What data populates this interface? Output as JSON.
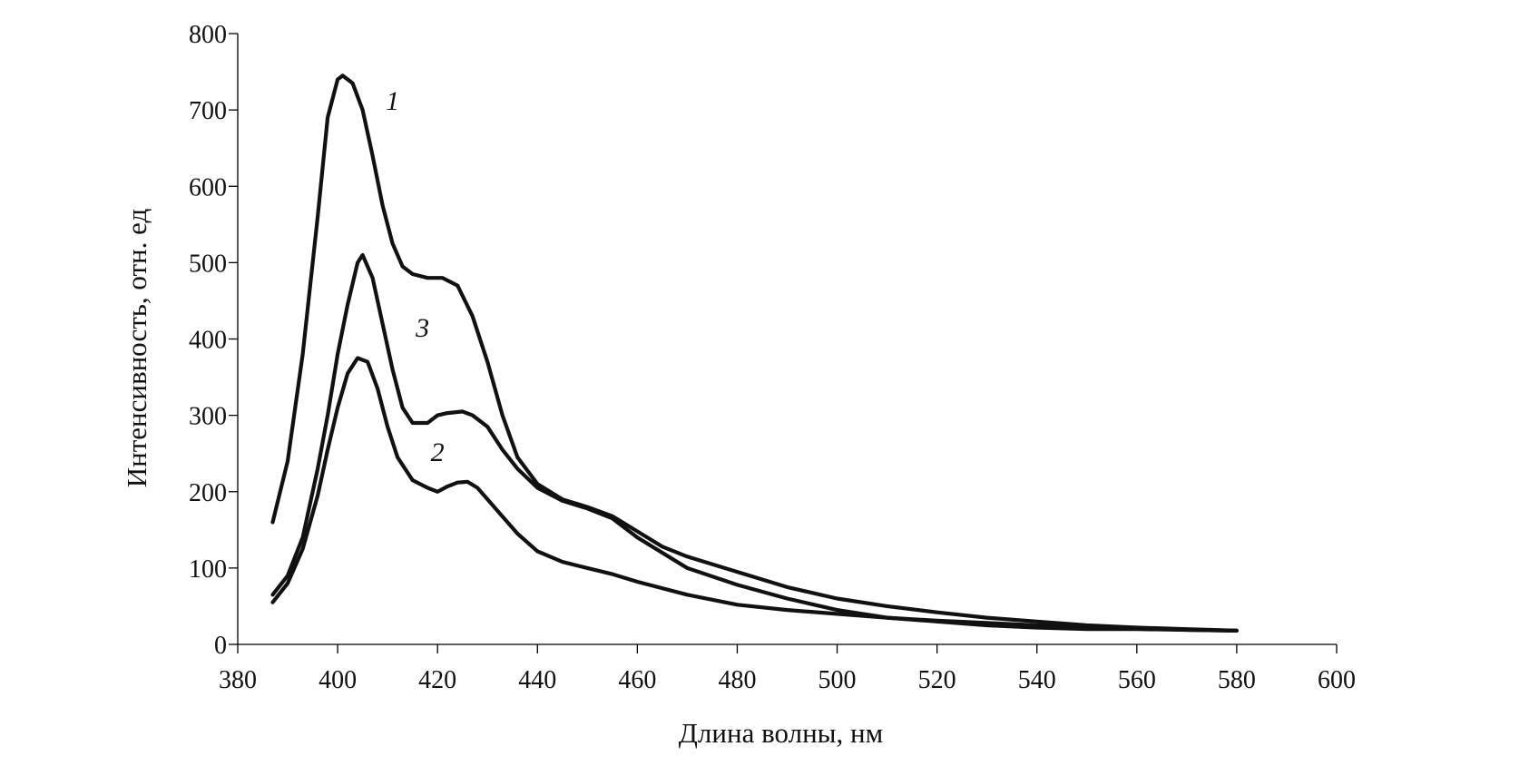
{
  "chart_data": {
    "type": "line",
    "xlabel": "Длина волны, нм",
    "ylabel": "Интенсивность, отн. ед",
    "xlim": [
      380,
      600
    ],
    "ylim": [
      0,
      800
    ],
    "xticks": [
      "380",
      "400",
      "420",
      "440",
      "460",
      "480",
      "500",
      "520",
      "540",
      "560",
      "580",
      "600"
    ],
    "yticks": [
      "0",
      "100",
      "200",
      "300",
      "400",
      "500",
      "600",
      "700",
      "800"
    ],
    "grid": false,
    "line_color": "#111111",
    "series": [
      {
        "name": "1",
        "x": [
          387,
          390,
          393,
          396,
          398,
          400,
          401,
          403,
          405,
          407,
          409,
          411,
          413,
          415,
          418,
          421,
          424,
          427,
          430,
          433,
          436,
          440,
          445,
          450,
          455,
          460,
          465,
          470,
          480,
          490,
          500,
          510,
          520,
          530,
          540,
          550,
          560,
          570,
          580
        ],
        "values": [
          160,
          240,
          380,
          560,
          690,
          740,
          745,
          735,
          700,
          640,
          575,
          525,
          495,
          485,
          480,
          480,
          470,
          430,
          370,
          300,
          245,
          210,
          190,
          180,
          168,
          148,
          128,
          115,
          95,
          75,
          60,
          50,
          42,
          35,
          30,
          25,
          22,
          20,
          18
        ]
      },
      {
        "name": "2",
        "x": [
          387,
          390,
          393,
          396,
          398,
          400,
          402,
          404,
          406,
          408,
          410,
          412,
          415,
          418,
          420,
          422,
          424,
          426,
          428,
          432,
          436,
          440,
          445,
          450,
          455,
          460,
          470,
          480,
          490,
          500,
          510,
          520,
          530,
          540,
          550,
          560,
          570,
          580
        ],
        "values": [
          55,
          80,
          125,
          195,
          255,
          310,
          355,
          375,
          370,
          335,
          285,
          245,
          215,
          205,
          200,
          207,
          212,
          213,
          205,
          175,
          145,
          122,
          108,
          100,
          92,
          82,
          65,
          52,
          45,
          40,
          35,
          31,
          28,
          25,
          23,
          21,
          19,
          18
        ]
      },
      {
        "name": "3",
        "x": [
          387,
          390,
          393,
          396,
          398,
          400,
          402,
          404,
          405,
          407,
          409,
          411,
          413,
          415,
          418,
          420,
          422,
          425,
          427,
          430,
          433,
          436,
          440,
          445,
          450,
          455,
          460,
          470,
          480,
          490,
          500,
          510,
          520,
          530,
          540,
          550,
          560,
          570,
          580
        ],
        "values": [
          65,
          90,
          140,
          230,
          300,
          380,
          445,
          500,
          510,
          480,
          420,
          360,
          310,
          290,
          290,
          300,
          303,
          305,
          300,
          285,
          255,
          230,
          205,
          188,
          178,
          165,
          140,
          100,
          78,
          60,
          45,
          35,
          30,
          25,
          22,
          20,
          20,
          19,
          18
        ]
      }
    ],
    "annotations": [
      {
        "text": "1",
        "x": 411,
        "y": 700
      },
      {
        "text": "2",
        "x": 420,
        "y": 240
      },
      {
        "text": "3",
        "x": 417,
        "y": 403
      }
    ]
  }
}
